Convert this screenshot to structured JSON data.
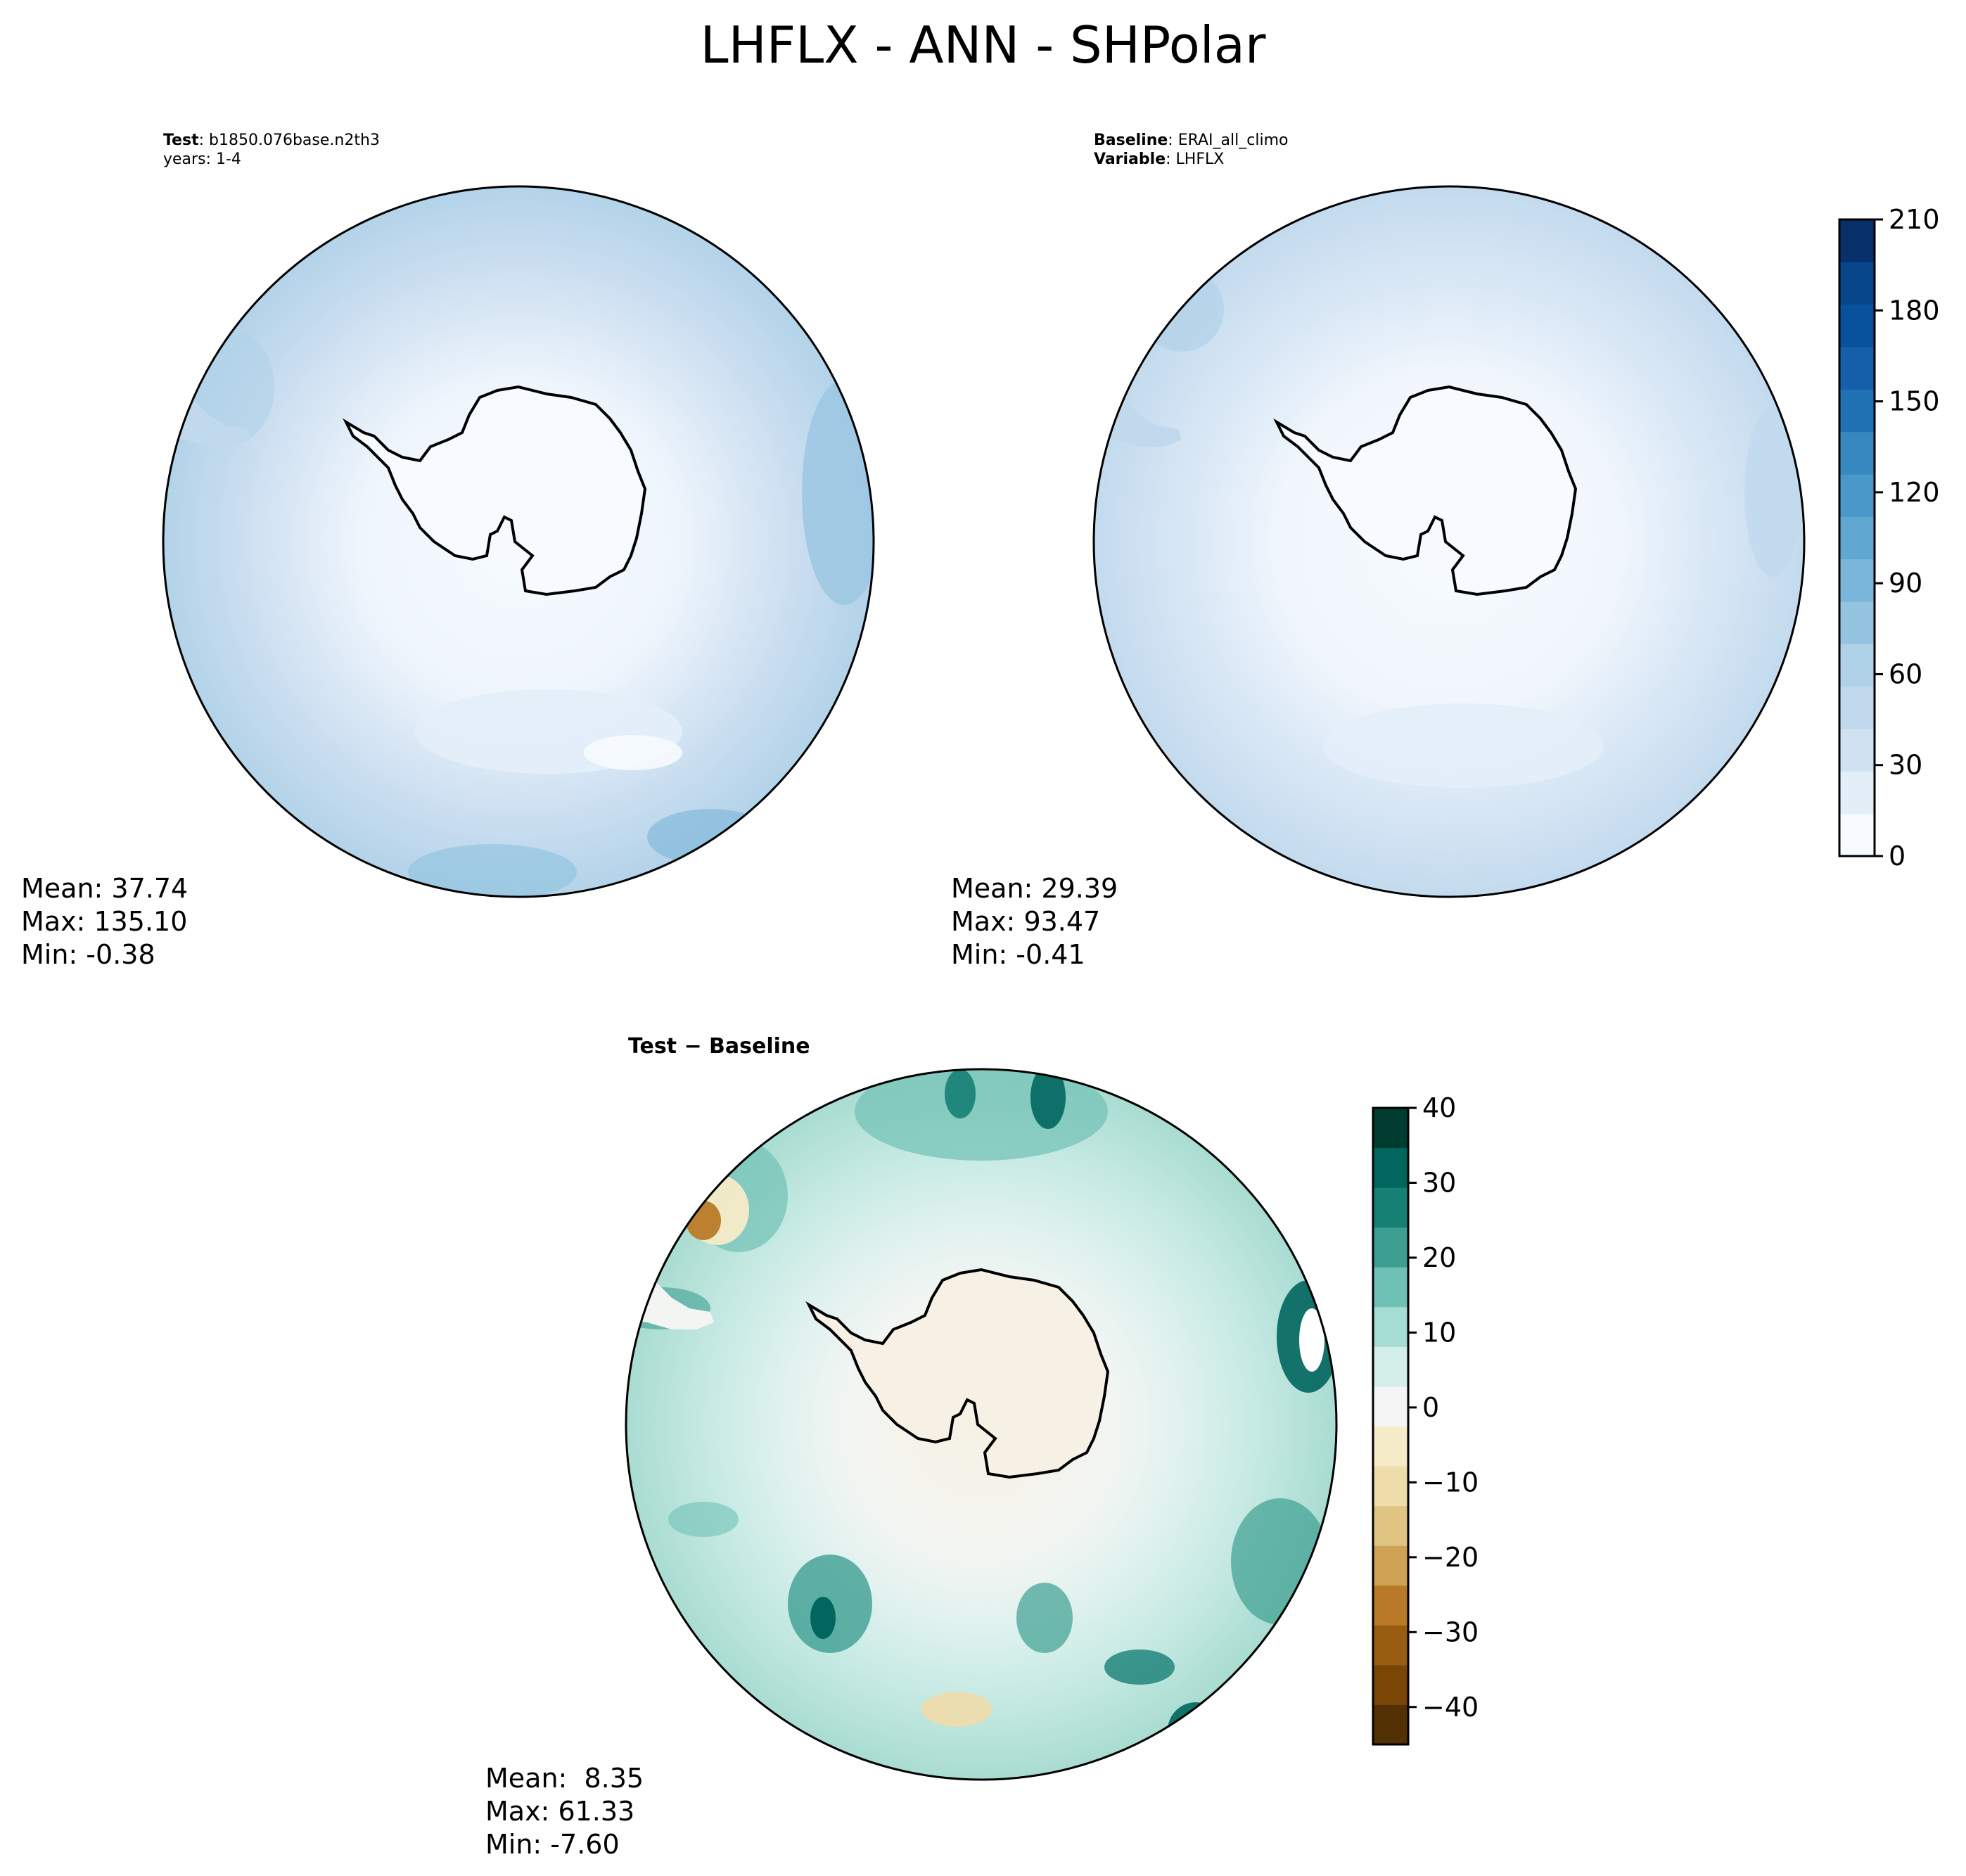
{
  "title": "LHFLX - ANN - SHPolar",
  "panels": {
    "test": {
      "label_key": "Test",
      "label_value": "b1850.076base.n2th3",
      "years": "years: 1-4",
      "stats": {
        "mean": "Mean: 37.74",
        "max": "Max: 135.10",
        "min": "Min: -0.38"
      }
    },
    "baseline": {
      "label_key": "Baseline",
      "label_value": "ERAI_all_climo",
      "variable_key": "Variable",
      "variable_value": "LHFLX",
      "stats": {
        "mean": "Mean: 29.39",
        "max": "Max: 93.47",
        "min": "Min: -0.41"
      }
    },
    "diff": {
      "title": "Test − Baseline",
      "stats": {
        "mean": "Mean:  8.35",
        "max": "Max: 61.33",
        "min": "Min: -7.60"
      }
    }
  },
  "colorbars": {
    "main": {
      "ticks": [
        "0",
        "30",
        "60",
        "90",
        "120",
        "150",
        "180",
        "210"
      ],
      "range": [
        0,
        210
      ],
      "colors": [
        "#f7fbff",
        "#e3eef9",
        "#d0e1f2",
        "#c1d9ed",
        "#b0d2e8",
        "#94c4df",
        "#7ab6d9",
        "#60a7d2",
        "#4a98c9",
        "#3787c0",
        "#2171b5",
        "#1460a8",
        "#08519c",
        "#08468b",
        "#08306b"
      ]
    },
    "diff": {
      "ticks": [
        "40",
        "30",
        "20",
        "10",
        "0",
        "−10",
        "−20",
        "−30",
        "−40"
      ],
      "range": [
        -45,
        40
      ],
      "colors": [
        "#543005",
        "#7a4606",
        "#995d12",
        "#b87a28",
        "#cfa154",
        "#e0c482",
        "#efdcab",
        "#f6ebc8",
        "#f5f5f5",
        "#d4eeea",
        "#a5dcd3",
        "#70c1b5",
        "#3d9f92",
        "#168075",
        "#01665e",
        "#003c30"
      ]
    }
  }
}
